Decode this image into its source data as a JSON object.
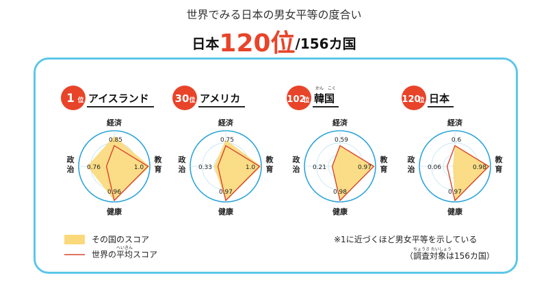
{
  "header": {
    "subtitle": "世界でみる日本の男女平等の度合い",
    "country": "日本",
    "rank": "120位",
    "total": "/156カ国"
  },
  "colors": {
    "accent": "#e8442a",
    "score_fill": "#fbd97a",
    "world_line": "#d9432c",
    "frame": "#5cc6e8",
    "circle": "#2aa3d8"
  },
  "axes": {
    "top": "経済",
    "right": "教育",
    "bottom": "健康",
    "left": "政治"
  },
  "chart_data": {
    "type": "radar",
    "axes_order": [
      "経済",
      "教育",
      "健康",
      "政治"
    ],
    "range": [
      0,
      1
    ],
    "world_average": [
      0.58,
      0.95,
      0.96,
      0.22
    ],
    "charts": [
      {
        "rank_num": "1",
        "rank_unit": "位",
        "name": "アイスランド",
        "values": [
          0.85,
          1.0,
          0.96,
          0.76
        ],
        "labels": [
          "0.85",
          "1.0",
          "0.96",
          "0.76"
        ]
      },
      {
        "rank_num": "30",
        "rank_unit": "位",
        "name": "アメリカ",
        "values": [
          0.75,
          1.0,
          0.97,
          0.33
        ],
        "labels": [
          "0.75",
          "1.0",
          "0.97",
          "0.33"
        ]
      },
      {
        "rank_num": "102",
        "rank_unit": "位",
        "name": "韓国",
        "name_ruby": "かん　こく",
        "values": [
          0.59,
          0.97,
          0.98,
          0.21
        ],
        "labels": [
          "0.59",
          "0.97",
          "0.98",
          "0.21"
        ]
      },
      {
        "rank_num": "120",
        "rank_unit": "位",
        "name": "日本",
        "values": [
          0.6,
          0.98,
          0.97,
          0.06
        ],
        "labels": [
          "0.6",
          "0.98",
          "0.97",
          "0.06"
        ]
      }
    ]
  },
  "legend": {
    "score": "その国のスコア",
    "average": "世界の平均スコア",
    "average_ruby": "へいきん"
  },
  "note": {
    "line1": "※1に近づくほど男女平等を示している",
    "line2": "（調査対象は156カ国）",
    "line2_ruby": "ちょうさ たいしょう"
  }
}
